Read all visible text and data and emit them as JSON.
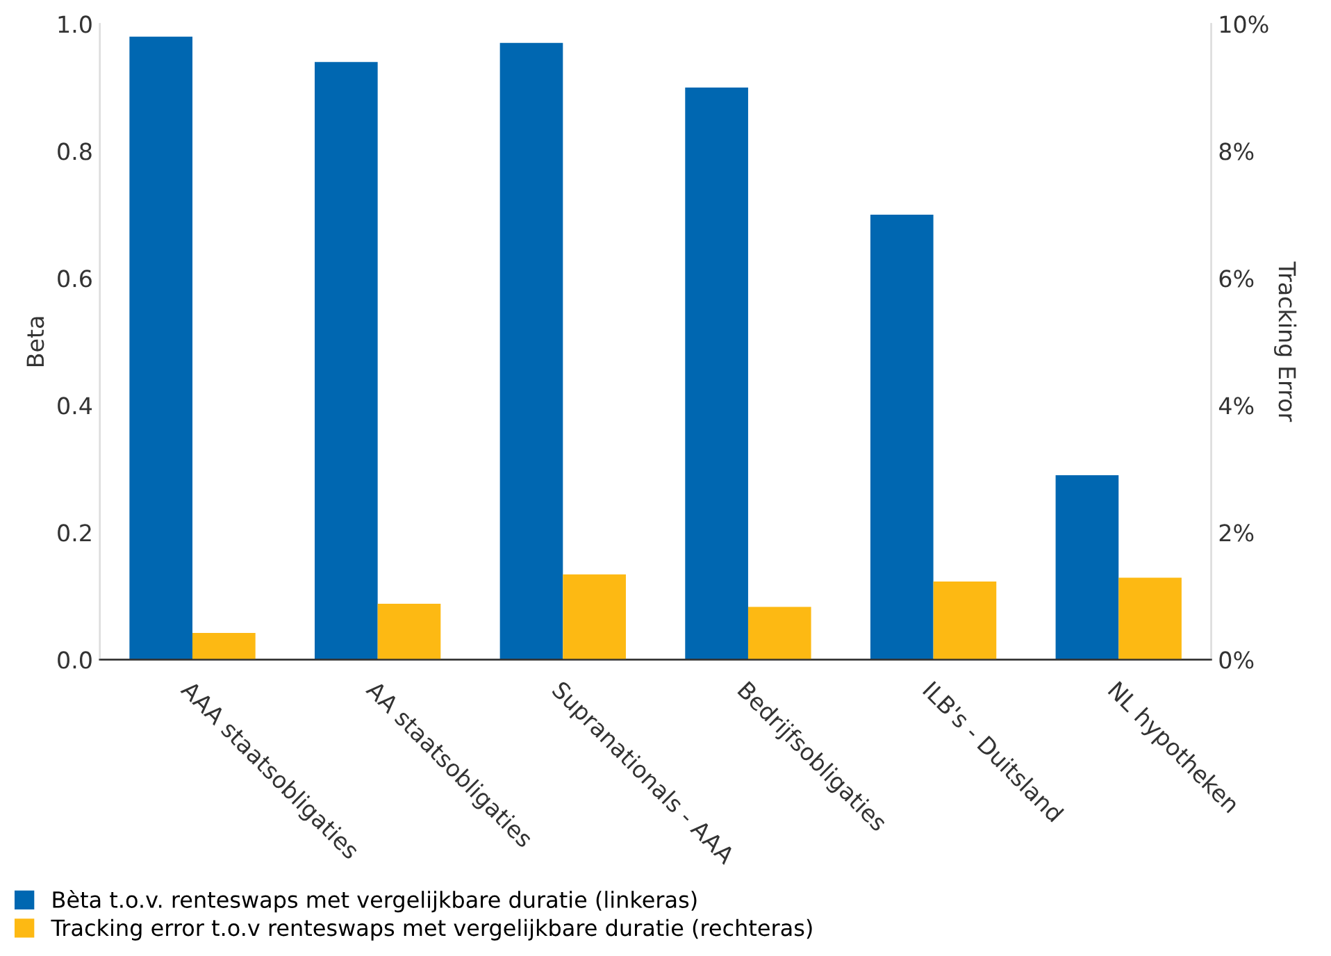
{
  "chart_data": {
    "type": "bar",
    "ylabel": "Beta",
    "y2label": "Tracking Error",
    "categories": [
      "AAA staatsobligaties",
      "AA staatsobligaties",
      "Supranationals - AAA",
      "Bedrijfsobligaties",
      "ILB's - Duitsland",
      "NL hypotheken"
    ],
    "series": [
      {
        "name": "Bèta t.o.v. renteswaps met vergelijkbare duratie (linkeras)",
        "color": "#0067b1",
        "values": [
          0.98,
          0.94,
          0.97,
          0.9,
          0.7,
          0.29
        ]
      },
      {
        "name": "Tracking error t.o.v renteswaps met vergelijkbare duratie (rechteras)",
        "color": "#fdb913",
        "axis": "y2",
        "values": [
          0.42,
          0.88,
          1.34,
          0.83,
          1.23,
          1.29
        ]
      }
    ],
    "ylim": [
      0,
      1.0
    ],
    "yticks": [
      {
        "value": 0,
        "label": "0.0"
      },
      0.2,
      0.4,
      0.6,
      0.8,
      {
        "value": 1.0,
        "label": "1.0"
      }
    ],
    "y2lim": [
      0,
      10
    ],
    "y2ticks": [
      {
        "value": 0,
        "label": "0%"
      },
      {
        "value": 2,
        "label": "2%"
      },
      {
        "value": 4,
        "label": "4%"
      },
      {
        "value": 6,
        "label": "6%"
      },
      {
        "value": 8,
        "label": "8%"
      },
      {
        "value": 10,
        "label": "10%"
      }
    ],
    "grid": false,
    "legend": "bottom"
  }
}
